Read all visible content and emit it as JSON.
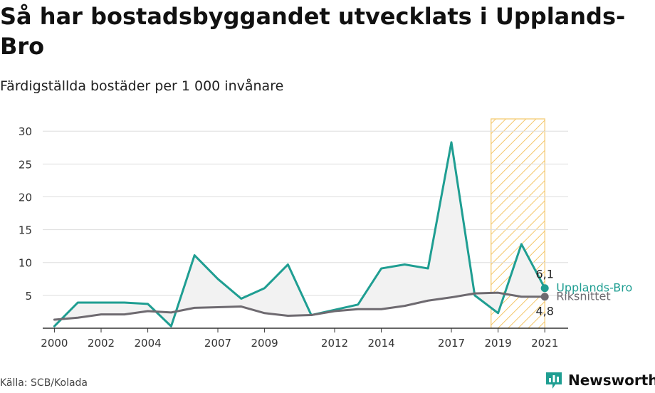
{
  "title": "Så har bostadsbyggandet utvecklats i Upplands-Bro",
  "subtitle": "Färdigställda bostäder per 1 000 invånare",
  "source": "Källa: SCB/Kolada",
  "brand": "Newsworthy",
  "colors": {
    "primary": "#1f9e92",
    "secondary": "#6e6a70",
    "highlight": "#f4c76a",
    "grid": "#dddddd",
    "fill": "#f2f2f2"
  },
  "chart_data": {
    "type": "line",
    "title": "Så har bostadsbyggandet utvecklats i Upplands-Bro",
    "subtitle": "Färdigställda bostäder per 1 000 invånare",
    "xlabel": "",
    "ylabel": "",
    "x": [
      2000,
      2001,
      2002,
      2003,
      2004,
      2005,
      2006,
      2007,
      2008,
      2009,
      2010,
      2011,
      2012,
      2013,
      2014,
      2015,
      2016,
      2017,
      2018,
      2019,
      2020,
      2021
    ],
    "x_ticks": [
      2000,
      2002,
      2004,
      2007,
      2009,
      2012,
      2014,
      2017,
      2019,
      2021
    ],
    "xlim": [
      1999.5,
      2022
    ],
    "ylim": [
      0,
      31
    ],
    "y_ticks": [
      5,
      10,
      15,
      20,
      25,
      30
    ],
    "grid": true,
    "highlight_range": [
      2018.7,
      2021
    ],
    "series": [
      {
        "name": "Upplands-Bro",
        "values": [
          0.3,
          3.9,
          3.9,
          3.9,
          3.7,
          0.3,
          11.1,
          7.5,
          4.5,
          6.1,
          9.7,
          2.0,
          2.8,
          3.6,
          9.1,
          9.7,
          9.1,
          28.3,
          5.0,
          2.3,
          12.8,
          6.1
        ]
      },
      {
        "name": "Riksnittet",
        "values": [
          1.3,
          1.6,
          2.1,
          2.1,
          2.6,
          2.4,
          3.1,
          3.2,
          3.3,
          2.3,
          1.9,
          2.0,
          2.6,
          2.9,
          2.9,
          3.4,
          4.2,
          4.7,
          5.3,
          5.4,
          4.8,
          4.8
        ]
      }
    ],
    "end_labels": [
      "6,1",
      "4,8"
    ]
  }
}
